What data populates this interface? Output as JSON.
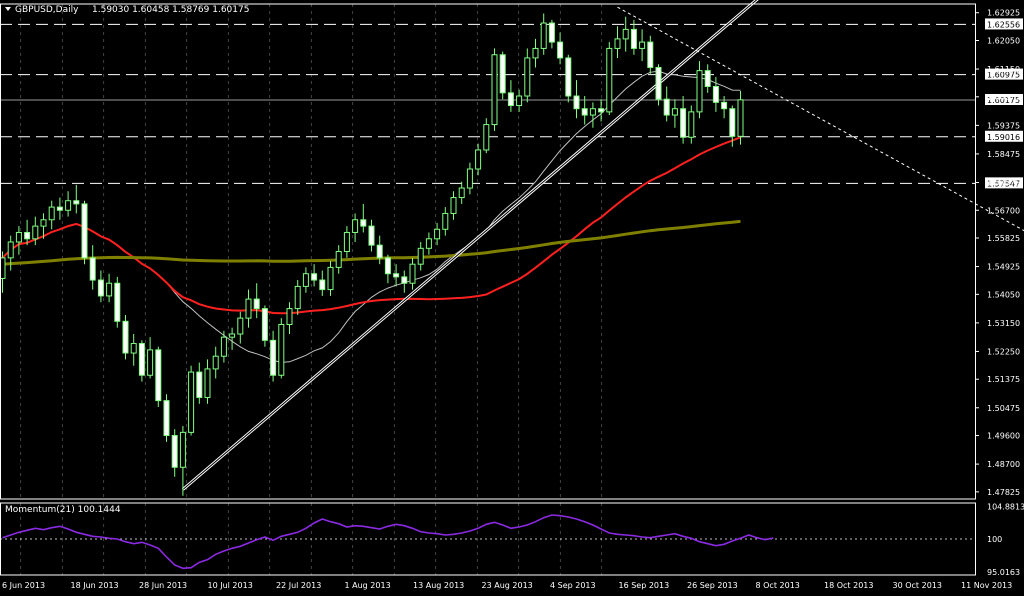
{
  "header": {
    "symbol_label": "GBPUSD,Daily",
    "ohlc_label": "1.59030 1.60458 1.58769 1.60175"
  },
  "indicator_header": {
    "label": "Momentum(21) 100.1444"
  },
  "colors": {
    "background": "#000000",
    "grid": "#c8c8c8",
    "candle_up_outline": "#80ff80",
    "candle_up_fill": "#000000",
    "candle_down_fill": "#ffffff",
    "ma_fast": "#ff2020",
    "ma_slow": "#808000",
    "ma_thin": "#c0c0c0",
    "trendline": "#ffffff",
    "momentum": "#8a2be2",
    "axis_text": "#ffffff"
  },
  "chart_data": {
    "type": "candlestick",
    "price_axis": {
      "ylim": [
        1.476,
        1.632
      ],
      "tick_labels": [
        "1.62925",
        "1.62050",
        "1.61150",
        "1.60275",
        "1.59375",
        "1.58475",
        "1.57575",
        "1.56700",
        "1.55825",
        "1.54925",
        "1.54050",
        "1.53150",
        "1.52250",
        "1.51375",
        "1.50475",
        "1.49600",
        "1.48700",
        "1.47825"
      ]
    },
    "horizontal_levels": [
      {
        "label": "1.62556",
        "value": 1.62556,
        "style": "dashed"
      },
      {
        "label": "1.60975",
        "value": 1.60975,
        "style": "dashed"
      },
      {
        "label": "1.60175",
        "value": 1.60175,
        "style": "solid-current"
      },
      {
        "label": "1.59016",
        "value": 1.59016,
        "style": "dashed"
      },
      {
        "label": "1.57547",
        "value": 1.57547,
        "style": "dashed"
      }
    ],
    "date_labels": [
      "6 Jun 2013",
      "18 Jun 2013",
      "28 Jun 2013",
      "10 Jul 2013",
      "22 Jul 2013",
      "1 Aug 2013",
      "13 Aug 2013",
      "23 Aug 2013",
      "4 Sep 2013",
      "16 Sep 2013",
      "26 Sep 2013",
      "8 Oct 2013",
      "18 Oct 2013",
      "30 Oct 2013",
      "11 Nov 2013"
    ],
    "x_start": "2013-06-03",
    "candles": [
      [
        1.5455,
        1.554,
        1.541,
        1.552
      ],
      [
        1.552,
        1.559,
        1.548,
        1.557
      ],
      [
        1.557,
        1.562,
        1.553,
        1.56
      ],
      [
        1.56,
        1.564,
        1.556,
        1.558
      ],
      [
        1.558,
        1.565,
        1.556,
        1.562
      ],
      [
        1.562,
        1.566,
        1.558,
        1.564
      ],
      [
        1.564,
        1.57,
        1.561,
        1.568
      ],
      [
        1.568,
        1.571,
        1.564,
        1.567
      ],
      [
        1.567,
        1.573,
        1.565,
        1.57
      ],
      [
        1.57,
        1.575,
        1.566,
        1.569
      ],
      [
        1.569,
        1.57,
        1.55,
        1.552
      ],
      [
        1.552,
        1.556,
        1.542,
        1.545
      ],
      [
        1.545,
        1.548,
        1.538,
        1.54
      ],
      [
        1.54,
        1.547,
        1.538,
        1.544
      ],
      [
        1.544,
        1.546,
        1.53,
        1.532
      ],
      [
        1.532,
        1.534,
        1.52,
        1.522
      ],
      [
        1.522,
        1.528,
        1.518,
        1.525
      ],
      [
        1.525,
        1.526,
        1.513,
        1.515
      ],
      [
        1.515,
        1.527,
        1.514,
        1.523
      ],
      [
        1.523,
        1.524,
        1.505,
        1.507
      ],
      [
        1.507,
        1.509,
        1.494,
        1.496
      ],
      [
        1.496,
        1.498,
        1.483,
        1.486
      ],
      [
        1.486,
        1.499,
        1.477,
        1.497
      ],
      [
        1.497,
        1.518,
        1.496,
        1.516
      ],
      [
        1.516,
        1.519,
        1.506,
        1.508
      ],
      [
        1.508,
        1.52,
        1.506,
        1.517
      ],
      [
        1.517,
        1.524,
        1.514,
        1.521
      ],
      [
        1.521,
        1.529,
        1.519,
        1.527
      ],
      [
        1.527,
        1.53,
        1.523,
        1.528
      ],
      [
        1.528,
        1.535,
        1.525,
        1.533
      ],
      [
        1.533,
        1.542,
        1.53,
        1.539
      ],
      [
        1.539,
        1.544,
        1.533,
        1.536
      ],
      [
        1.536,
        1.537,
        1.524,
        1.526
      ],
      [
        1.526,
        1.529,
        1.513,
        1.515
      ],
      [
        1.515,
        1.533,
        1.514,
        1.531
      ],
      [
        1.531,
        1.538,
        1.528,
        1.536
      ],
      [
        1.536,
        1.545,
        1.534,
        1.543
      ],
      [
        1.543,
        1.549,
        1.541,
        1.547
      ],
      [
        1.547,
        1.55,
        1.543,
        1.545
      ],
      [
        1.545,
        1.548,
        1.54,
        1.542
      ],
      [
        1.542,
        1.551,
        1.54,
        1.549
      ],
      [
        1.549,
        1.556,
        1.547,
        1.554
      ],
      [
        1.554,
        1.562,
        1.552,
        1.56
      ],
      [
        1.56,
        1.566,
        1.557,
        1.564
      ],
      [
        1.564,
        1.569,
        1.56,
        1.562
      ],
      [
        1.562,
        1.564,
        1.554,
        1.556
      ],
      [
        1.556,
        1.559,
        1.55,
        1.552
      ],
      [
        1.552,
        1.553,
        1.544,
        1.547
      ],
      [
        1.547,
        1.55,
        1.543,
        1.546
      ],
      [
        1.546,
        1.548,
        1.541,
        1.544
      ],
      [
        1.544,
        1.552,
        1.542,
        1.55
      ],
      [
        1.55,
        1.557,
        1.548,
        1.555
      ],
      [
        1.555,
        1.56,
        1.553,
        1.558
      ],
      [
        1.558,
        1.563,
        1.556,
        1.561
      ],
      [
        1.561,
        1.568,
        1.559,
        1.566
      ],
      [
        1.566,
        1.573,
        1.564,
        1.571
      ],
      [
        1.571,
        1.576,
        1.569,
        1.574
      ],
      [
        1.574,
        1.582,
        1.572,
        1.58
      ],
      [
        1.58,
        1.588,
        1.578,
        1.586
      ],
      [
        1.586,
        1.596,
        1.585,
        1.594
      ],
      [
        1.594,
        1.618,
        1.592,
        1.616
      ],
      [
        1.616,
        1.617,
        1.602,
        1.604
      ],
      [
        1.604,
        1.608,
        1.598,
        1.6
      ],
      [
        1.6,
        1.605,
        1.598,
        1.603
      ],
      [
        1.603,
        1.618,
        1.601,
        1.615
      ],
      [
        1.615,
        1.621,
        1.612,
        1.618
      ],
      [
        1.618,
        1.629,
        1.616,
        1.626
      ],
      [
        1.626,
        1.627,
        1.618,
        1.62
      ],
      [
        1.62,
        1.623,
        1.613,
        1.615
      ],
      [
        1.615,
        1.616,
        1.601,
        1.603
      ],
      [
        1.603,
        1.608,
        1.596,
        1.599
      ],
      [
        1.599,
        1.603,
        1.594,
        1.597
      ],
      [
        1.597,
        1.601,
        1.593,
        1.599
      ],
      [
        1.599,
        1.602,
        1.595,
        1.598
      ],
      [
        1.598,
        1.62,
        1.597,
        1.618
      ],
      [
        1.618,
        1.625,
        1.615,
        1.621
      ],
      [
        1.621,
        1.628,
        1.617,
        1.624
      ],
      [
        1.624,
        1.627,
        1.616,
        1.618
      ],
      [
        1.618,
        1.624,
        1.614,
        1.62
      ],
      [
        1.62,
        1.622,
        1.61,
        1.612
      ],
      [
        1.612,
        1.613,
        1.6,
        1.602
      ],
      [
        1.602,
        1.606,
        1.595,
        1.597
      ],
      [
        1.597,
        1.602,
        1.593,
        1.599
      ],
      [
        1.599,
        1.603,
        1.588,
        1.59
      ],
      [
        1.59,
        1.6,
        1.588,
        1.598
      ],
      [
        1.598,
        1.614,
        1.596,
        1.611
      ],
      [
        1.611,
        1.613,
        1.604,
        1.606
      ],
      [
        1.606,
        1.609,
        1.598,
        1.601
      ],
      [
        1.601,
        1.603,
        1.596,
        1.599
      ],
      [
        1.599,
        1.6,
        1.587,
        1.5903
      ],
      [
        1.5903,
        1.6046,
        1.5877,
        1.6018
      ]
    ],
    "moving_averages": [
      {
        "period": 21,
        "color": "#c0c0c0",
        "width": 1
      },
      {
        "period": 50,
        "color": "#ff2020",
        "width": 2
      },
      {
        "period": 200,
        "color": "#808000",
        "width": 3,
        "seed": 1.55,
        "trend_per_bar": 0.00013
      }
    ],
    "trendlines": [
      {
        "from_bar": 22,
        "from_price": 1.479,
        "to_bar": 95,
        "to_price": 1.64,
        "style": "solid-double"
      },
      {
        "from_bar": 75,
        "from_price": 1.631,
        "to_bar": 125,
        "to_price": 1.56,
        "style": "dotted"
      }
    ],
    "momentum": {
      "period": 21,
      "ylim": [
        94.6,
        105.4
      ],
      "tick_labels": [
        "104.8813",
        "100",
        "95.0163"
      ],
      "reference": 100,
      "values": [
        100.2,
        100.6,
        101.0,
        101.3,
        101.6,
        101.4,
        101.7,
        101.9,
        101.5,
        101.0,
        100.7,
        100.4,
        100.3,
        100.1,
        100.0,
        99.6,
        99.3,
        99.5,
        99.1,
        98.6,
        97.3,
        96.1,
        95.6,
        95.7,
        96.5,
        96.9,
        97.7,
        98.2,
        98.6,
        98.9,
        99.4,
        99.9,
        100.3,
        99.8,
        100.4,
        100.7,
        101.0,
        101.6,
        102.4,
        103.0,
        102.6,
        102.3,
        101.8,
        102.0,
        101.9,
        101.7,
        101.5,
        101.9,
        102.2,
        102.0,
        101.6,
        101.1,
        100.9,
        100.8,
        100.6,
        100.7,
        100.9,
        101.2,
        101.6,
        102.2,
        102.5,
        102.1,
        101.6,
        101.8,
        102.1,
        102.6,
        103.2,
        103.6,
        103.5,
        103.3,
        103.0,
        102.6,
        102.1,
        101.5,
        100.9,
        100.7,
        100.6,
        100.5,
        100.3,
        100.2,
        100.4,
        100.6,
        100.8,
        100.4,
        100.1,
        99.6,
        99.3,
        99.0,
        99.2,
        99.7,
        100.1,
        100.6,
        100.2,
        99.9,
        100.1444
      ]
    }
  }
}
